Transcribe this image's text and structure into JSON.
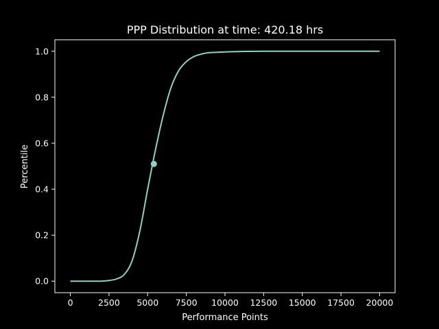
{
  "chart_data": {
    "type": "line",
    "title": "PPP Distribution at time: 420.18 hrs",
    "xlabel": "Performance Points",
    "ylabel": "Percentile",
    "xlim": [
      -1000,
      21000
    ],
    "ylim": [
      -0.05,
      1.05
    ],
    "xticks": [
      0,
      2500,
      5000,
      7500,
      10000,
      12500,
      15000,
      17500,
      20000
    ],
    "xtick_labels": [
      "0",
      "2500",
      "5000",
      "7500",
      "10000",
      "12500",
      "15000",
      "17500",
      "20000"
    ],
    "yticks": [
      0.0,
      0.2,
      0.4,
      0.6,
      0.8,
      1.0
    ],
    "ytick_labels": [
      "0.0",
      "0.2",
      "0.4",
      "0.6",
      "0.8",
      "1.0"
    ],
    "grid": false,
    "series": [
      {
        "color": "#8dd3c7",
        "x": [
          0,
          1000,
          2000,
          2500,
          3000,
          3500,
          4000,
          4500,
          5000,
          5500,
          6000,
          6500,
          7000,
          7500,
          8000,
          8500,
          9000,
          10000,
          11000,
          12500,
          15000,
          17500,
          20000
        ],
        "y": [
          0.0,
          0.0,
          0.0,
          0.003,
          0.01,
          0.03,
          0.09,
          0.22,
          0.4,
          0.57,
          0.72,
          0.84,
          0.915,
          0.955,
          0.977,
          0.988,
          0.994,
          0.997,
          0.999,
          1.0,
          1.0,
          1.0,
          1.0
        ]
      }
    ],
    "marker": {
      "x": 5400,
      "y": 0.51,
      "color": "#8dd3c7"
    }
  }
}
